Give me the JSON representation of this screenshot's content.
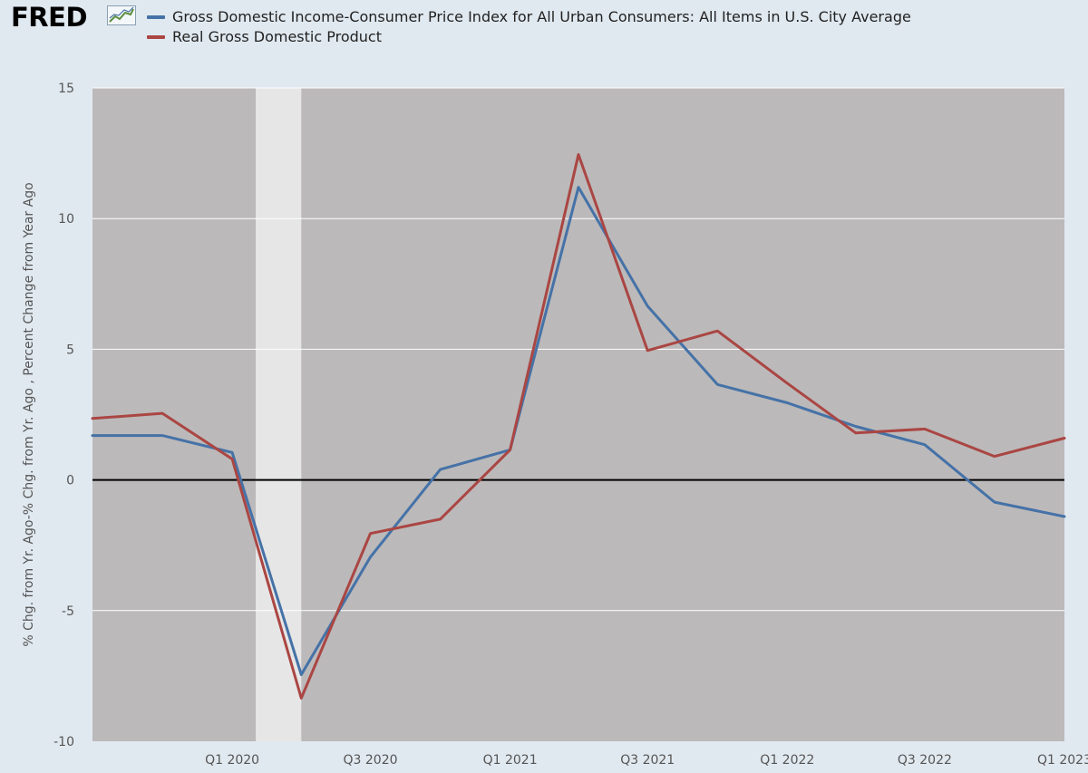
{
  "header": {
    "logo": "FRED",
    "logo_icon": "trend-line-icon"
  },
  "colors": {
    "plot_background": "#bcb9ba",
    "recession_band": "#e6e6e6",
    "page_background": "#e1e9f0",
    "gdi_cpi": "#4572a7",
    "real_gdp": "#aa4643"
  },
  "chart_data": {
    "type": "line",
    "title": "",
    "xlabel": "",
    "ylabel": "% Chg. from Yr. Ago-% Chg. from Yr. Ago , Percent Change from Year Ago",
    "ylim": [
      -10,
      15
    ],
    "yticks": [
      15,
      10,
      5,
      0,
      -5,
      -10
    ],
    "x": [
      "2019-07-01",
      "2019-10-01",
      "2020-01-01",
      "2020-04-01",
      "2020-07-01",
      "2020-10-01",
      "2021-01-01",
      "2021-04-01",
      "2021-07-01",
      "2021-10-01",
      "2022-01-01",
      "2022-04-01",
      "2022-07-01",
      "2022-10-01",
      "2023-01-01"
    ],
    "xticks": [
      {
        "label": "Q1 2020",
        "x": "2020-01-01"
      },
      {
        "label": "Q3 2020",
        "x": "2020-07-01"
      },
      {
        "label": "Q1 2021",
        "x": "2021-01-01"
      },
      {
        "label": "Q3 2021",
        "x": "2021-07-01"
      },
      {
        "label": "Q1 2022",
        "x": "2022-01-01"
      },
      {
        "label": "Q3 2022",
        "x": "2022-07-01"
      },
      {
        "label": "Q1 2023",
        "x": "2023-01-01"
      }
    ],
    "recession": {
      "start": "2020-02-01",
      "end": "2020-04-01"
    },
    "series": [
      {
        "name": "Gross Domestic Income-Consumer Price Index for All Urban Consumers: All Items in U.S. City Average",
        "color": "#4572a7",
        "values": [
          1.7,
          1.7,
          1.05,
          -7.45,
          -2.95,
          0.4,
          1.15,
          11.2,
          6.65,
          3.65,
          2.95,
          2.05,
          1.35,
          -0.85,
          -1.4
        ]
      },
      {
        "name": "Real Gross Domestic Product",
        "color": "#aa4643",
        "values": [
          2.35,
          2.55,
          0.8,
          -8.35,
          -2.05,
          -1.5,
          1.15,
          12.45,
          4.95,
          5.7,
          3.7,
          1.8,
          1.95,
          0.9,
          1.6
        ]
      }
    ],
    "zero_line": true,
    "grid": true,
    "legend": "top-left"
  }
}
